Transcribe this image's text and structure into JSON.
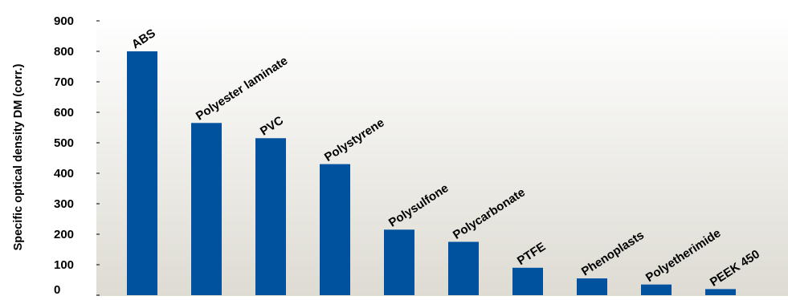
{
  "chart_data": {
    "type": "bar",
    "title": "",
    "xlabel": "",
    "ylabel": "Specific optical density DM (corr.)",
    "ylim": [
      0,
      900
    ],
    "yticks": [
      0,
      100,
      200,
      300,
      400,
      500,
      600,
      700,
      800,
      900
    ],
    "categories": [
      "ABS",
      "Polyester laminate",
      "PVC",
      "Polystyrene",
      "Polysulfone",
      "Polycarbonate",
      "PTFE",
      "Phenoplasts",
      "Polyetherimide",
      "PEEK 450"
    ],
    "values": [
      800,
      565,
      515,
      430,
      215,
      175,
      90,
      55,
      35,
      20
    ],
    "grid": false,
    "legend": "none",
    "colors": {
      "bar": "#00519E",
      "background_top": "#FFFFFF",
      "background_bottom": "#DDDBD2",
      "text": "#000000"
    }
  }
}
